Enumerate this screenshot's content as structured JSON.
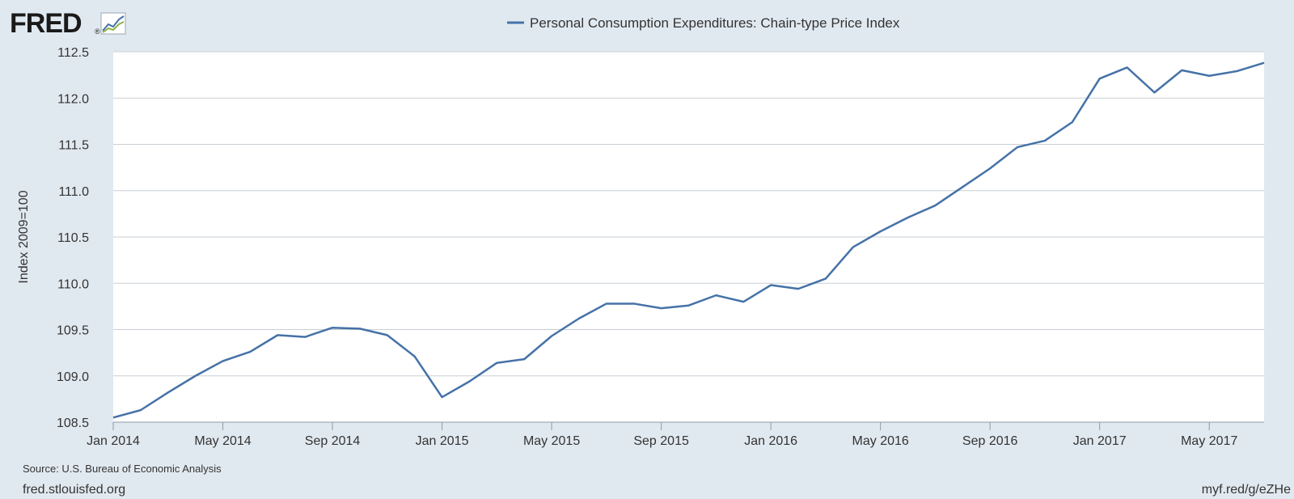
{
  "logo": {
    "text": "FRED",
    "registered": "®"
  },
  "colors": {
    "series": "#4572a7",
    "background": "#e1e9f0",
    "plot_background": "#ffffff",
    "grid": "#c9cfd6",
    "text": "#333333"
  },
  "source": "Source: U.S. Bureau of Economic Analysis",
  "footer": {
    "left": "fred.stlouisfed.org",
    "right": "myf.red/g/eZHe"
  },
  "chart_data": {
    "type": "line",
    "ylabel": "Index 2009=100",
    "ylim": [
      108.5,
      112.5
    ],
    "yticks": [
      "108.5",
      "109.0",
      "109.5",
      "110.0",
      "110.5",
      "111.0",
      "111.5",
      "112.0",
      "112.5"
    ],
    "ytick_values": [
      108.5,
      109.0,
      109.5,
      110.0,
      110.5,
      111.0,
      111.5,
      112.0,
      112.5
    ],
    "xlim_month_index": [
      0,
      42
    ],
    "xticks": [
      "Jan 2014",
      "May 2014",
      "Sep 2014",
      "Jan 2015",
      "May 2015",
      "Sep 2015",
      "Jan 2016",
      "May 2016",
      "Sep 2016",
      "Jan 2017",
      "May 2017"
    ],
    "xtick_positions": [
      0,
      4,
      8,
      12,
      16,
      20,
      24,
      28,
      32,
      36,
      40
    ],
    "grid": true,
    "legend_position": "top-center",
    "series": [
      {
        "name": "Personal Consumption Expenditures: Chain-type Price Index",
        "color": "#4572a7",
        "x": [
          "2014-01",
          "2014-02",
          "2014-03",
          "2014-04",
          "2014-05",
          "2014-06",
          "2014-07",
          "2014-08",
          "2014-09",
          "2014-10",
          "2014-11",
          "2014-12",
          "2015-01",
          "2015-02",
          "2015-03",
          "2015-04",
          "2015-05",
          "2015-06",
          "2015-07",
          "2015-08",
          "2015-09",
          "2015-10",
          "2015-11",
          "2015-12",
          "2016-01",
          "2016-02",
          "2016-03",
          "2016-04",
          "2016-05",
          "2016-06",
          "2016-07",
          "2016-08",
          "2016-09",
          "2016-10",
          "2016-11",
          "2016-12",
          "2017-01",
          "2017-02",
          "2017-03",
          "2017-04",
          "2017-05",
          "2017-06",
          "2017-07"
        ],
        "values": [
          108.55,
          108.63,
          108.82,
          109.0,
          109.16,
          109.26,
          109.44,
          109.42,
          109.52,
          109.51,
          109.44,
          109.21,
          108.77,
          108.94,
          109.14,
          109.18,
          109.43,
          109.62,
          109.78,
          109.78,
          109.73,
          109.76,
          109.87,
          109.8,
          109.98,
          109.94,
          110.05,
          110.39,
          110.56,
          110.71,
          110.84,
          111.04,
          111.24,
          111.47,
          111.54,
          111.74,
          112.21,
          112.33,
          112.06,
          112.3,
          112.24,
          112.29,
          112.38
        ]
      }
    ]
  }
}
